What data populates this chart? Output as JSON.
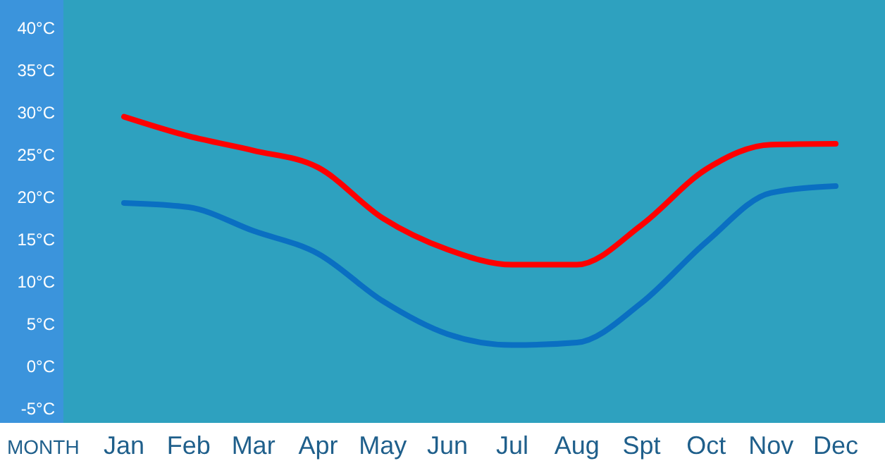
{
  "chart_data": {
    "type": "line",
    "xlabel": "MONTH",
    "categories": [
      "Jan",
      "Feb",
      "Mar",
      "Apr",
      "May",
      "Jun",
      "Jul",
      "Aug",
      "Spt",
      "Oct",
      "Nov",
      "Dec"
    ],
    "series": [
      {
        "color": "#ff0000",
        "values": [
          29.5,
          27.2,
          25.5,
          23.5,
          17.5,
          13.8,
          12,
          12,
          16.7,
          23.3,
          26.2,
          26.3
        ]
      },
      {
        "color": "#0a6fc2",
        "values": [
          19.3,
          18.8,
          16,
          13.3,
          7.7,
          3.8,
          2.5,
          2.8,
          7.5,
          14.7,
          20.5,
          21.3
        ]
      }
    ],
    "ylim": [
      -6.7,
      43.3
    ],
    "yticks": [
      {
        "value": -5,
        "label": "-5°C"
      },
      {
        "value": 0,
        "label": "0°C"
      },
      {
        "value": 5,
        "label": "5°C"
      },
      {
        "value": 10,
        "label": "10°C"
      },
      {
        "value": 15,
        "label": "15°C"
      },
      {
        "value": 20,
        "label": "20°C"
      },
      {
        "value": 25,
        "label": "25°C"
      },
      {
        "value": 30,
        "label": "30°C"
      },
      {
        "value": 35,
        "label": "35°C"
      },
      {
        "value": 40,
        "label": "40°C"
      }
    ],
    "grid": false,
    "marker": "none",
    "line_style": "solid"
  }
}
